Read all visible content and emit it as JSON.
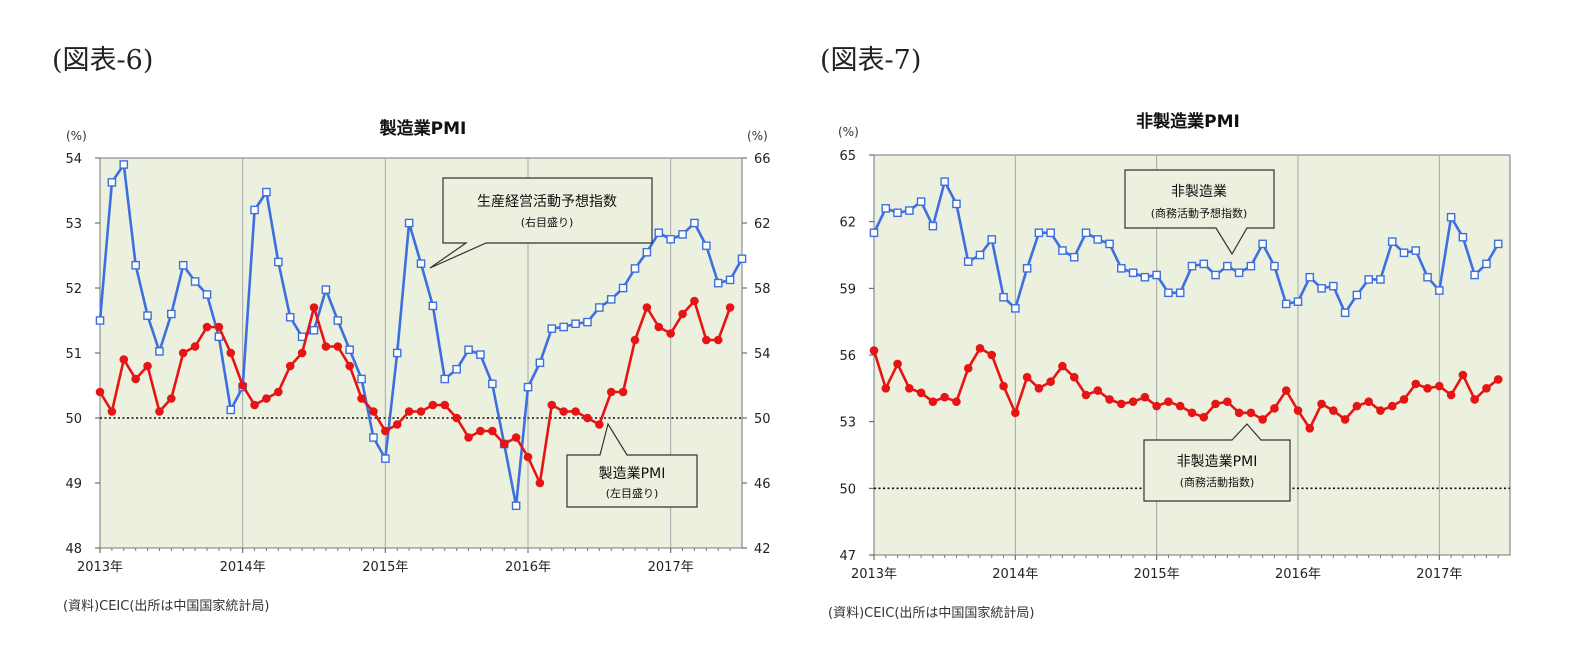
{
  "figures": [
    {
      "label": "(図表-6)"
    },
    {
      "label": "(図表-7)"
    }
  ],
  "chart_data": [
    {
      "type": "line",
      "title": "製造業PMI",
      "y_unit_left": "(%)",
      "y_unit_right": "(%)",
      "ylim_left": [
        48,
        54
      ],
      "ylim_right": [
        42,
        66
      ],
      "yticks_left": [
        "54",
        "53",
        "52",
        "51",
        "50",
        "49",
        "48"
      ],
      "yticks_right": [
        "66",
        "62",
        "58",
        "54",
        "50",
        "46",
        "42"
      ],
      "xlim": [
        0,
        54
      ],
      "xticks": [
        {
          "x": 0,
          "label": "2013年"
        },
        {
          "x": 12,
          "label": "2014年"
        },
        {
          "x": 24,
          "label": "2015年"
        },
        {
          "x": 36,
          "label": "2016年"
        },
        {
          "x": 48,
          "label": "2017年"
        }
      ],
      "reference_line": 50,
      "source": "(資料)CEIC(出所は中国国家統計局)",
      "series": [
        {
          "name": "生産経営活動予想指数",
          "name_sub": "(右目盛り)",
          "axis": "right",
          "color": "#3d6fe0",
          "marker": "square",
          "values": [
            56.0,
            64.5,
            65.6,
            59.4,
            56.3,
            54.1,
            56.4,
            59.4,
            58.4,
            57.6,
            55.0,
            50.5,
            51.9,
            62.8,
            63.9,
            59.6,
            56.2,
            55.0,
            55.4,
            57.9,
            56.0,
            54.2,
            52.4,
            48.8,
            47.5,
            54.0,
            62.0,
            59.5,
            56.9,
            52.4,
            53.0,
            54.2,
            53.9,
            52.1,
            48.4,
            44.6,
            51.9,
            53.4,
            55.5,
            55.6,
            55.8,
            55.9,
            56.8,
            57.3,
            58.0,
            59.2,
            60.2,
            61.4,
            61.0,
            61.3,
            62.0,
            60.6,
            58.3,
            58.5,
            59.8
          ]
        },
        {
          "name": "製造業PMI",
          "name_sub": "(左目盛り)",
          "axis": "left",
          "color": "#e61414",
          "marker": "circle",
          "values": [
            50.4,
            50.1,
            50.9,
            50.6,
            50.8,
            50.1,
            50.3,
            51.0,
            51.1,
            51.4,
            51.4,
            51.0,
            50.5,
            50.2,
            50.3,
            50.4,
            50.8,
            51.0,
            51.7,
            51.1,
            51.1,
            50.8,
            50.3,
            50.1,
            49.8,
            49.9,
            50.1,
            50.1,
            50.2,
            50.2,
            50.0,
            49.7,
            49.8,
            49.8,
            49.6,
            49.7,
            49.4,
            49.0,
            50.2,
            50.1,
            50.1,
            50.0,
            49.9,
            50.4,
            50.4,
            51.2,
            51.7,
            51.4,
            51.3,
            51.6,
            51.8,
            51.2,
            51.2,
            51.7
          ]
        }
      ]
    },
    {
      "type": "line",
      "title": "非製造業PMI",
      "y_unit_left": "(%)",
      "ylim_left": [
        47,
        65
      ],
      "yticks_left": [
        "65",
        "62",
        "59",
        "56",
        "53",
        "50",
        "47"
      ],
      "xlim": [
        0,
        54
      ],
      "xticks": [
        {
          "x": 0,
          "label": "2013年"
        },
        {
          "x": 12,
          "label": "2014年"
        },
        {
          "x": 24,
          "label": "2015年"
        },
        {
          "x": 36,
          "label": "2016年"
        },
        {
          "x": 48,
          "label": "2017年"
        }
      ],
      "reference_line": 50,
      "source": "(資料)CEIC(出所は中国国家統計局)",
      "series": [
        {
          "name": "非製造業",
          "name_sub": "(商務活動予想指数)",
          "axis": "left",
          "color": "#3d6fe0",
          "marker": "square",
          "values": [
            61.5,
            62.6,
            62.4,
            62.5,
            62.9,
            61.8,
            63.8,
            62.8,
            60.2,
            60.5,
            61.2,
            58.6,
            58.1,
            59.9,
            61.5,
            61.5,
            60.7,
            60.4,
            61.5,
            61.2,
            61.0,
            59.9,
            59.7,
            59.5,
            59.6,
            58.8,
            58.8,
            60.0,
            60.1,
            59.6,
            60.0,
            59.7,
            60.0,
            61.0,
            60.0,
            58.3,
            58.4,
            59.5,
            59.0,
            59.1,
            57.9,
            58.7,
            59.4,
            59.4,
            61.1,
            60.6,
            60.7,
            59.5,
            58.9,
            62.2,
            61.3,
            59.6,
            60.1,
            61.0
          ]
        },
        {
          "name": "非製造業PMI",
          "name_sub": "(商務活動指数)",
          "axis": "left",
          "color": "#e61414",
          "marker": "circle",
          "values": [
            56.2,
            54.5,
            55.6,
            54.5,
            54.3,
            53.9,
            54.1,
            53.9,
            55.4,
            56.3,
            56.0,
            54.6,
            53.4,
            55.0,
            54.5,
            54.8,
            55.5,
            55.0,
            54.2,
            54.4,
            54.0,
            53.8,
            53.9,
            54.1,
            53.7,
            53.9,
            53.7,
            53.4,
            53.2,
            53.8,
            53.9,
            53.4,
            53.4,
            53.1,
            53.6,
            54.4,
            53.5,
            52.7,
            53.8,
            53.5,
            53.1,
            53.7,
            53.9,
            53.5,
            53.7,
            54.0,
            54.7,
            54.5,
            54.6,
            54.2,
            55.1,
            54.0,
            54.5,
            54.9
          ]
        }
      ]
    }
  ]
}
